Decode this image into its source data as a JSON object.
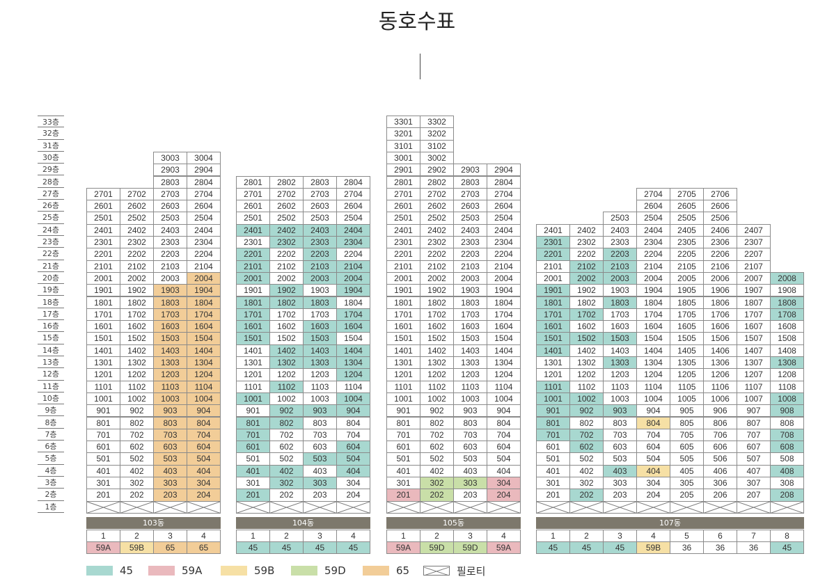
{
  "title": "동호수표",
  "floors": [
    "33층",
    "32층",
    "31층",
    "30층",
    "29층",
    "28층",
    "27층",
    "26층",
    "25층",
    "24층",
    "23층",
    "22층",
    "21층",
    "20층",
    "19층",
    "18층",
    "17층",
    "16층",
    "15층",
    "14층",
    "13층",
    "12층",
    "11층",
    "10층",
    "9층",
    "8층",
    "7층",
    "6층",
    "5층",
    "4층",
    "3층",
    "2층",
    "1층"
  ],
  "colors": {
    "45": "#a8d8d0",
    "59A": "#eab9bd",
    "59B": "#f6e0a5",
    "59D": "#c9dfa8",
    "65": "#f2cd98"
  },
  "buildings": [
    {
      "name": "103동",
      "lines": [
        {
          "num": "1",
          "type": "59A",
          "top": 27
        },
        {
          "num": "2",
          "type": "59B",
          "top": 27
        },
        {
          "num": "3",
          "type": "65",
          "top": 30
        },
        {
          "num": "4",
          "type": "65",
          "top": 30
        }
      ],
      "highlights": {
        "1903": "65",
        "1904": "65",
        "1803": "65",
        "1804": "65",
        "1703": "65",
        "1704": "65",
        "1603": "65",
        "1604": "65",
        "1503": "65",
        "1504": "65",
        "1403": "65",
        "1404": "65",
        "1303": "65",
        "1304": "65",
        "1203": "65",
        "1204": "65",
        "1103": "65",
        "1104": "65",
        "1003": "65",
        "1004": "65",
        "903": "65",
        "904": "65",
        "803": "65",
        "804": "65",
        "703": "65",
        "704": "65",
        "603": "65",
        "604": "65",
        "503": "65",
        "504": "65",
        "403": "65",
        "404": "65",
        "303": "65",
        "304": "65",
        "203": "65",
        "204": "65",
        "2004": "65"
      }
    },
    {
      "name": "104동",
      "lines": [
        {
          "num": "1",
          "type": "45",
          "top": 28
        },
        {
          "num": "2",
          "type": "45",
          "top": 28
        },
        {
          "num": "3",
          "type": "45",
          "top": 28
        },
        {
          "num": "4",
          "type": "45",
          "top": 28
        }
      ],
      "highlights": {
        "2401": "45",
        "2402": "45",
        "2403": "45",
        "2404": "45",
        "2302": "45",
        "2303": "45",
        "2304": "45",
        "2201": "45",
        "2203": "45",
        "2101": "45",
        "2103": "45",
        "2104": "45",
        "2001": "45",
        "2003": "45",
        "2004": "45",
        "1902": "45",
        "1904": "45",
        "1801": "45",
        "1802": "45",
        "1803": "45",
        "1701": "45",
        "1704": "45",
        "1601": "45",
        "1603": "45",
        "1604": "45",
        "1501": "45",
        "1503": "45",
        "1402": "45",
        "1403": "45",
        "1404": "45",
        "1302": "45",
        "1303": "45",
        "1304": "45",
        "1204": "45",
        "1102": "45",
        "1001": "45",
        "1004": "45",
        "902": "45",
        "903": "45",
        "904": "45",
        "801": "45",
        "802": "45",
        "701": "45",
        "601": "45",
        "604": "45",
        "503": "45",
        "504": "45",
        "401": "45",
        "402": "45",
        "404": "45",
        "302": "45",
        "303": "45",
        "201": "45"
      }
    },
    {
      "name": "105동",
      "lines": [
        {
          "num": "1",
          "type": "59A",
          "top": 33
        },
        {
          "num": "2",
          "type": "59D",
          "top": 33
        },
        {
          "num": "3",
          "type": "59D",
          "top": 29
        },
        {
          "num": "4",
          "type": "59A",
          "top": 29
        }
      ],
      "highlights": {
        "302": "59D",
        "303": "59D",
        "304": "59A",
        "201": "59A",
        "202": "59D",
        "204": "59A"
      }
    },
    {
      "name": "107동",
      "lines": [
        {
          "num": "1",
          "type": "45",
          "top": 24
        },
        {
          "num": "2",
          "type": "45",
          "top": 24
        },
        {
          "num": "3",
          "type": "45",
          "top": 25
        },
        {
          "num": "4",
          "type": "59B",
          "top": 27
        },
        {
          "num": "5",
          "type": "36",
          "top": 27
        },
        {
          "num": "6",
          "type": "36",
          "top": 27
        },
        {
          "num": "7",
          "type": "36",
          "top": 24
        },
        {
          "num": "8",
          "type": "45",
          "top": 20
        }
      ],
      "highlights": {
        "2301": "45",
        "2201": "45",
        "2203": "45",
        "2102": "45",
        "2103": "45",
        "2002": "45",
        "2003": "45",
        "2008": "45",
        "1901": "45",
        "1801": "45",
        "1803": "45",
        "1808": "45",
        "1701": "45",
        "1702": "45",
        "1708": "45",
        "1601": "45",
        "1501": "45",
        "1502": "45",
        "1503": "45",
        "1401": "45",
        "1303": "45",
        "1308": "45",
        "1101": "45",
        "1001": "45",
        "1002": "45",
        "1008": "45",
        "901": "45",
        "902": "45",
        "903": "45",
        "908": "45",
        "801": "45",
        "804": "59B",
        "701": "45",
        "702": "45",
        "708": "45",
        "602": "45",
        "608": "45",
        "403": "45",
        "404": "59B",
        "408": "45",
        "202": "45",
        "208": "45"
      }
    }
  ],
  "legend": [
    {
      "key": "45",
      "label": "45"
    },
    {
      "key": "59A",
      "label": "59A"
    },
    {
      "key": "59B",
      "label": "59B"
    },
    {
      "key": "59D",
      "label": "59D"
    },
    {
      "key": "65",
      "label": "65"
    },
    {
      "key": "pilotis",
      "label": "필로티"
    }
  ]
}
